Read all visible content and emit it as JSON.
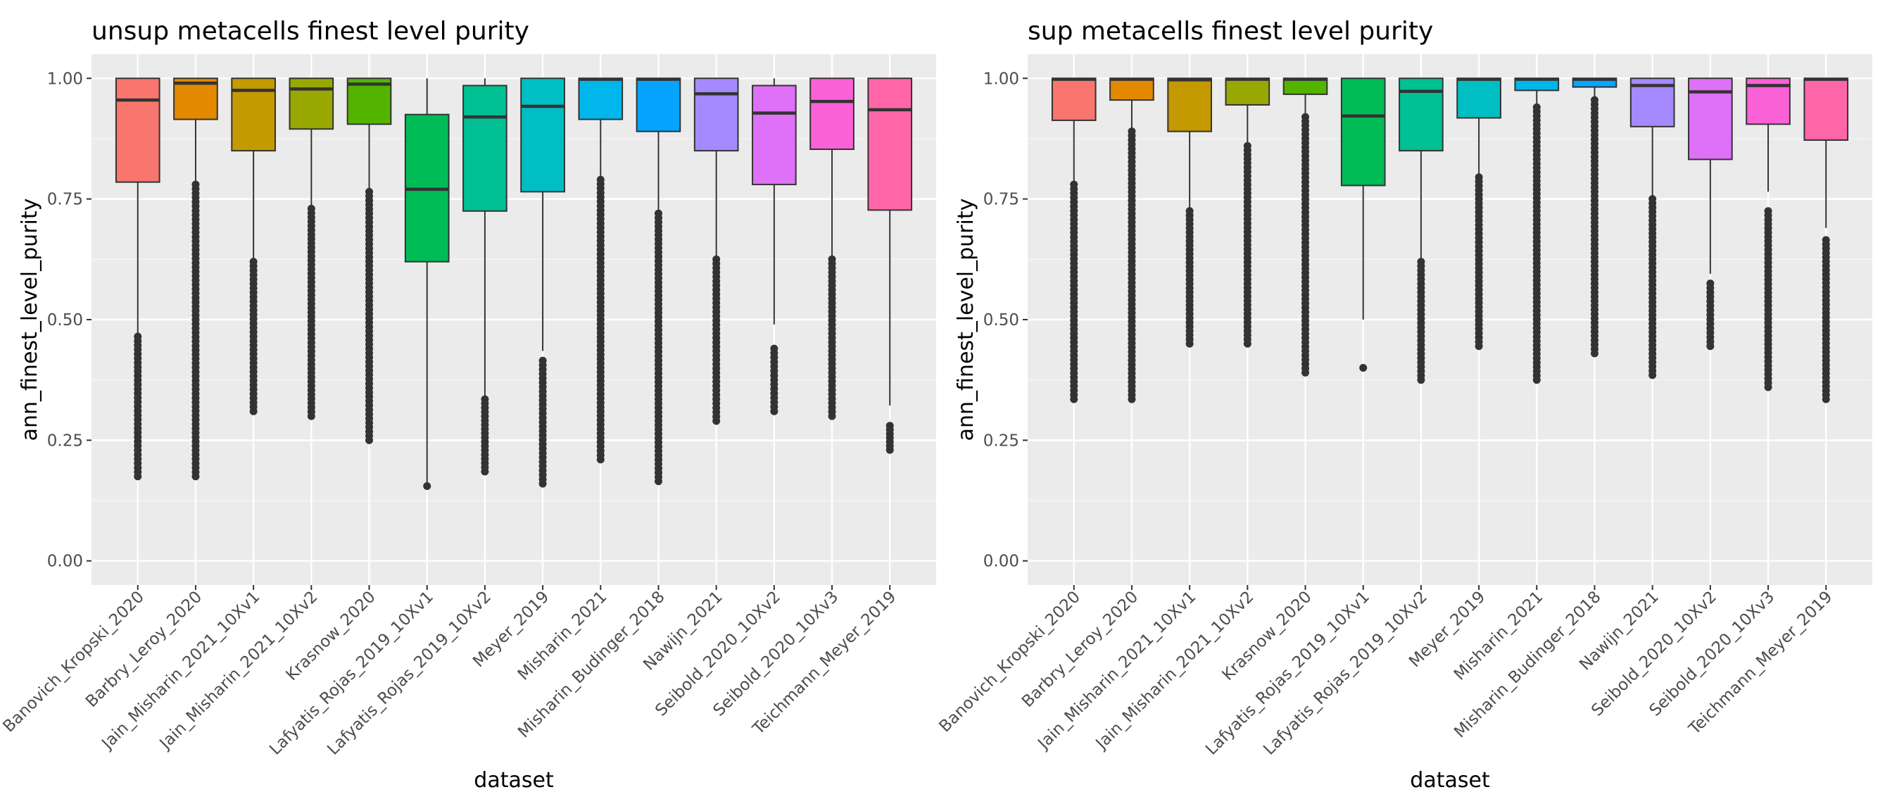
{
  "chart_data": [
    {
      "type": "box",
      "title": "unsup metacells finest level purity",
      "xlabel": "dataset",
      "ylabel": "ann_finest_level_purity",
      "ylim": [
        -0.05,
        1.05
      ],
      "yticks": [
        "0.00",
        "0.25",
        "0.50",
        "0.75",
        "1.00"
      ],
      "ytick_values": [
        0,
        0.25,
        0.5,
        0.75,
        1.0
      ],
      "grid": true,
      "legend": "none",
      "categories": [
        "Banovich_Kropski_2020",
        "Barbry_Leroy_2020",
        "Jain_Misharin_2021_10Xv1",
        "Jain_Misharin_2021_10Xv2",
        "Krasnow_2020",
        "Lafyatis_Rojas_2019_10Xv1",
        "Lafyatis_Rojas_2019_10Xv2",
        "Meyer_2019",
        "Misharin_2021",
        "Misharin_Budinger_2018",
        "Nawijn_2021",
        "Seibold_2020_10Xv2",
        "Seibold_2020_10Xv3",
        "Teichmann_Meyer_2019"
      ],
      "colors": [
        "#F8766D",
        "#E38900",
        "#C49A00",
        "#99A800",
        "#53B400",
        "#00BC56",
        "#00C094",
        "#00BFC4",
        "#00B6EB",
        "#06A4FF",
        "#A58AFF",
        "#DF70F8",
        "#FB61D7",
        "#FF66A8"
      ],
      "boxes": [
        {
          "q1": 0.785,
          "median": 0.955,
          "q3": 1.0,
          "whisker_low": 0.47,
          "whisker_high": 1.0,
          "outlier_range": [
            0.175,
            0.465
          ]
        },
        {
          "q1": 0.915,
          "median": 0.99,
          "q3": 1.0,
          "whisker_low": 0.785,
          "whisker_high": 1.0,
          "outlier_range": [
            0.175,
            0.78
          ]
        },
        {
          "q1": 0.85,
          "median": 0.975,
          "q3": 1.0,
          "whisker_low": 0.625,
          "whisker_high": 1.0,
          "outlier_range": [
            0.31,
            0.62
          ]
        },
        {
          "q1": 0.895,
          "median": 0.978,
          "q3": 1.0,
          "whisker_low": 0.735,
          "whisker_high": 1.0,
          "outlier_range": [
            0.3,
            0.73
          ]
        },
        {
          "q1": 0.905,
          "median": 0.988,
          "q3": 1.0,
          "whisker_low": 0.77,
          "whisker_high": 1.0,
          "outlier_range": [
            0.25,
            0.765
          ]
        },
        {
          "q1": 0.62,
          "median": 0.77,
          "q3": 0.925,
          "whisker_low": 0.155,
          "whisker_high": 1.0,
          "outlier_range": [
            0.155,
            0.155
          ]
        },
        {
          "q1": 0.725,
          "median": 0.92,
          "q3": 0.985,
          "whisker_low": 0.34,
          "whisker_high": 1.0,
          "outlier_range": [
            0.185,
            0.335
          ]
        },
        {
          "q1": 0.765,
          "median": 0.942,
          "q3": 1.0,
          "whisker_low": 0.435,
          "whisker_high": 1.0,
          "outlier_range": [
            0.16,
            0.415
          ]
        },
        {
          "q1": 0.915,
          "median": 0.998,
          "q3": 1.0,
          "whisker_low": 0.79,
          "whisker_high": 1.0,
          "outlier_range": [
            0.21,
            0.79
          ]
        },
        {
          "q1": 0.89,
          "median": 0.998,
          "q3": 1.0,
          "whisker_low": 0.725,
          "whisker_high": 1.0,
          "outlier_range": [
            0.165,
            0.72
          ]
        },
        {
          "q1": 0.85,
          "median": 0.968,
          "q3": 1.0,
          "whisker_low": 0.63,
          "whisker_high": 1.0,
          "outlier_range": [
            0.29,
            0.625
          ]
        },
        {
          "q1": 0.78,
          "median": 0.928,
          "q3": 0.985,
          "whisker_low": 0.49,
          "whisker_high": 1.0,
          "outlier_range": [
            0.31,
            0.44
          ]
        },
        {
          "q1": 0.853,
          "median": 0.952,
          "q3": 1.0,
          "whisker_low": 0.63,
          "whisker_high": 1.0,
          "outlier_range": [
            0.3,
            0.625
          ]
        },
        {
          "q1": 0.727,
          "median": 0.935,
          "q3": 1.0,
          "whisker_low": 0.322,
          "whisker_high": 1.0,
          "outlier_range": [
            0.23,
            0.28
          ]
        }
      ]
    },
    {
      "type": "box",
      "title": "sup metacells finest level purity",
      "xlabel": "dataset",
      "ylabel": "ann_finest_level_purity",
      "ylim": [
        -0.05,
        1.05
      ],
      "yticks": [
        "0.00",
        "0.25",
        "0.50",
        "0.75",
        "1.00"
      ],
      "ytick_values": [
        0,
        0.25,
        0.5,
        0.75,
        1.0
      ],
      "grid": true,
      "legend": "none",
      "categories": [
        "Banovich_Kropski_2020",
        "Barbry_Leroy_2020",
        "Jain_Misharin_2021_10Xv1",
        "Jain_Misharin_2021_10Xv2",
        "Krasnow_2020",
        "Lafyatis_Rojas_2019_10Xv1",
        "Lafyatis_Rojas_2019_10Xv2",
        "Meyer_2019",
        "Misharin_2021",
        "Misharin_Budinger_2018",
        "Nawijn_2021",
        "Seibold_2020_10Xv2",
        "Seibold_2020_10Xv3",
        "Teichmann_Meyer_2019"
      ],
      "colors": [
        "#F8766D",
        "#E38900",
        "#C49A00",
        "#99A800",
        "#53B400",
        "#00BC56",
        "#00C094",
        "#00BFC4",
        "#00B6EB",
        "#06A4FF",
        "#A58AFF",
        "#DF70F8",
        "#FB61D7",
        "#FF66A8"
      ],
      "boxes": [
        {
          "q1": 0.913,
          "median": 0.998,
          "q3": 1.0,
          "whisker_low": 0.785,
          "whisker_high": 1.0,
          "outlier_range": [
            0.335,
            0.78
          ]
        },
        {
          "q1": 0.955,
          "median": 0.998,
          "q3": 1.0,
          "whisker_low": 0.895,
          "whisker_high": 1.0,
          "outlier_range": [
            0.335,
            0.89
          ]
        },
        {
          "q1": 0.89,
          "median": 0.997,
          "q3": 1.0,
          "whisker_low": 0.73,
          "whisker_high": 1.0,
          "outlier_range": [
            0.45,
            0.725
          ]
        },
        {
          "q1": 0.945,
          "median": 0.998,
          "q3": 1.0,
          "whisker_low": 0.865,
          "whisker_high": 1.0,
          "outlier_range": [
            0.45,
            0.86
          ]
        },
        {
          "q1": 0.967,
          "median": 0.998,
          "q3": 1.0,
          "whisker_low": 0.925,
          "whisker_high": 1.0,
          "outlier_range": [
            0.39,
            0.92
          ]
        },
        {
          "q1": 0.778,
          "median": 0.922,
          "q3": 1.0,
          "whisker_low": 0.5,
          "whisker_high": 1.0,
          "outlier_range": [
            0.4,
            0.4
          ]
        },
        {
          "q1": 0.85,
          "median": 0.973,
          "q3": 1.0,
          "whisker_low": 0.625,
          "whisker_high": 1.0,
          "outlier_range": [
            0.375,
            0.62
          ]
        },
        {
          "q1": 0.918,
          "median": 0.998,
          "q3": 1.0,
          "whisker_low": 0.8,
          "whisker_high": 1.0,
          "outlier_range": [
            0.445,
            0.795
          ]
        },
        {
          "q1": 0.975,
          "median": 0.998,
          "q3": 1.0,
          "whisker_low": 0.945,
          "whisker_high": 1.0,
          "outlier_range": [
            0.375,
            0.94
          ]
        },
        {
          "q1": 0.982,
          "median": 0.998,
          "q3": 1.0,
          "whisker_low": 0.96,
          "whisker_high": 1.0,
          "outlier_range": [
            0.43,
            0.955
          ]
        },
        {
          "q1": 0.9,
          "median": 0.985,
          "q3": 1.0,
          "whisker_low": 0.755,
          "whisker_high": 1.0,
          "outlier_range": [
            0.385,
            0.75
          ]
        },
        {
          "q1": 0.832,
          "median": 0.972,
          "q3": 1.0,
          "whisker_low": 0.595,
          "whisker_high": 1.0,
          "outlier_range": [
            0.445,
            0.575
          ]
        },
        {
          "q1": 0.905,
          "median": 0.985,
          "q3": 1.0,
          "whisker_low": 0.765,
          "whisker_high": 1.0,
          "outlier_range": [
            0.36,
            0.725
          ]
        },
        {
          "q1": 0.872,
          "median": 0.998,
          "q3": 1.0,
          "whisker_low": 0.69,
          "whisker_high": 1.0,
          "outlier_range": [
            0.335,
            0.665
          ]
        }
      ]
    }
  ]
}
